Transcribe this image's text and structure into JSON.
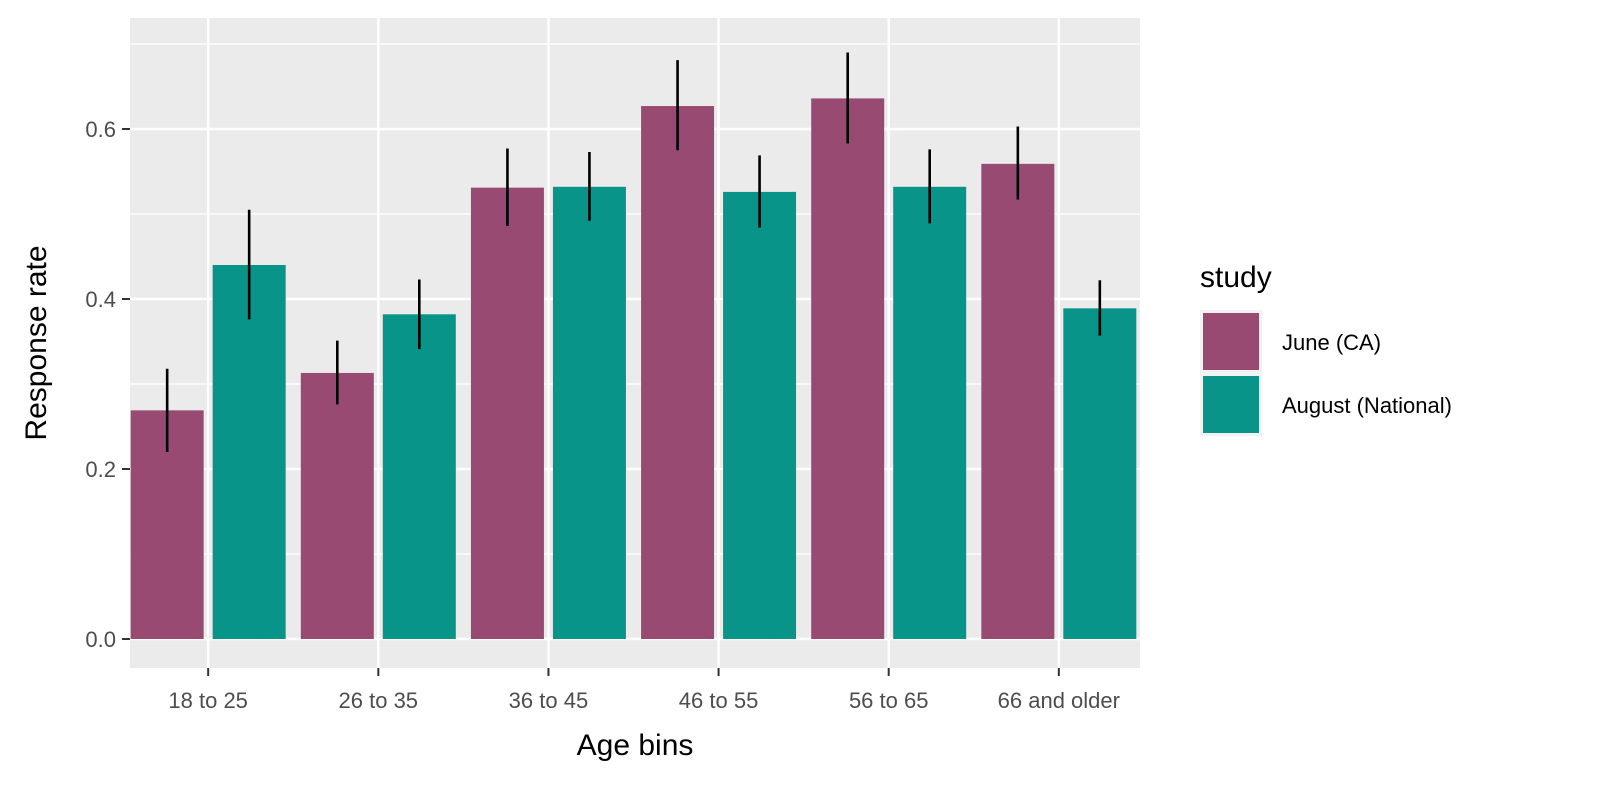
{
  "chart_data": {
    "type": "bar",
    "xlabel": "Age bins",
    "ylabel": "Response rate",
    "categories": [
      "18 to 25",
      "26 to 35",
      "36 to 45",
      "46 to 55",
      "56 to 65",
      "66 and older"
    ],
    "ylim": [
      -0.04,
      0.7
    ],
    "yticks": [
      0.0,
      0.2,
      0.4,
      0.6
    ],
    "ytick_labels": [
      "0.0",
      "0.2",
      "0.4",
      "0.6"
    ],
    "grid": true,
    "legend": {
      "title": "study",
      "position": "right"
    },
    "series": [
      {
        "name": "June (CA)",
        "color": "#984A73",
        "values": [
          0.269,
          0.313,
          0.531,
          0.627,
          0.636,
          0.559
        ],
        "err_low": [
          0.22,
          0.276,
          0.486,
          0.575,
          0.583,
          0.517
        ],
        "err_high": [
          0.318,
          0.351,
          0.577,
          0.681,
          0.69,
          0.603
        ]
      },
      {
        "name": "August (National)",
        "color": "#089488",
        "values": [
          0.44,
          0.382,
          0.532,
          0.526,
          0.532,
          0.389
        ],
        "err_low": [
          0.376,
          0.341,
          0.492,
          0.484,
          0.489,
          0.357
        ],
        "err_high": [
          0.505,
          0.423,
          0.573,
          0.569,
          0.576,
          0.422
        ]
      }
    ]
  }
}
